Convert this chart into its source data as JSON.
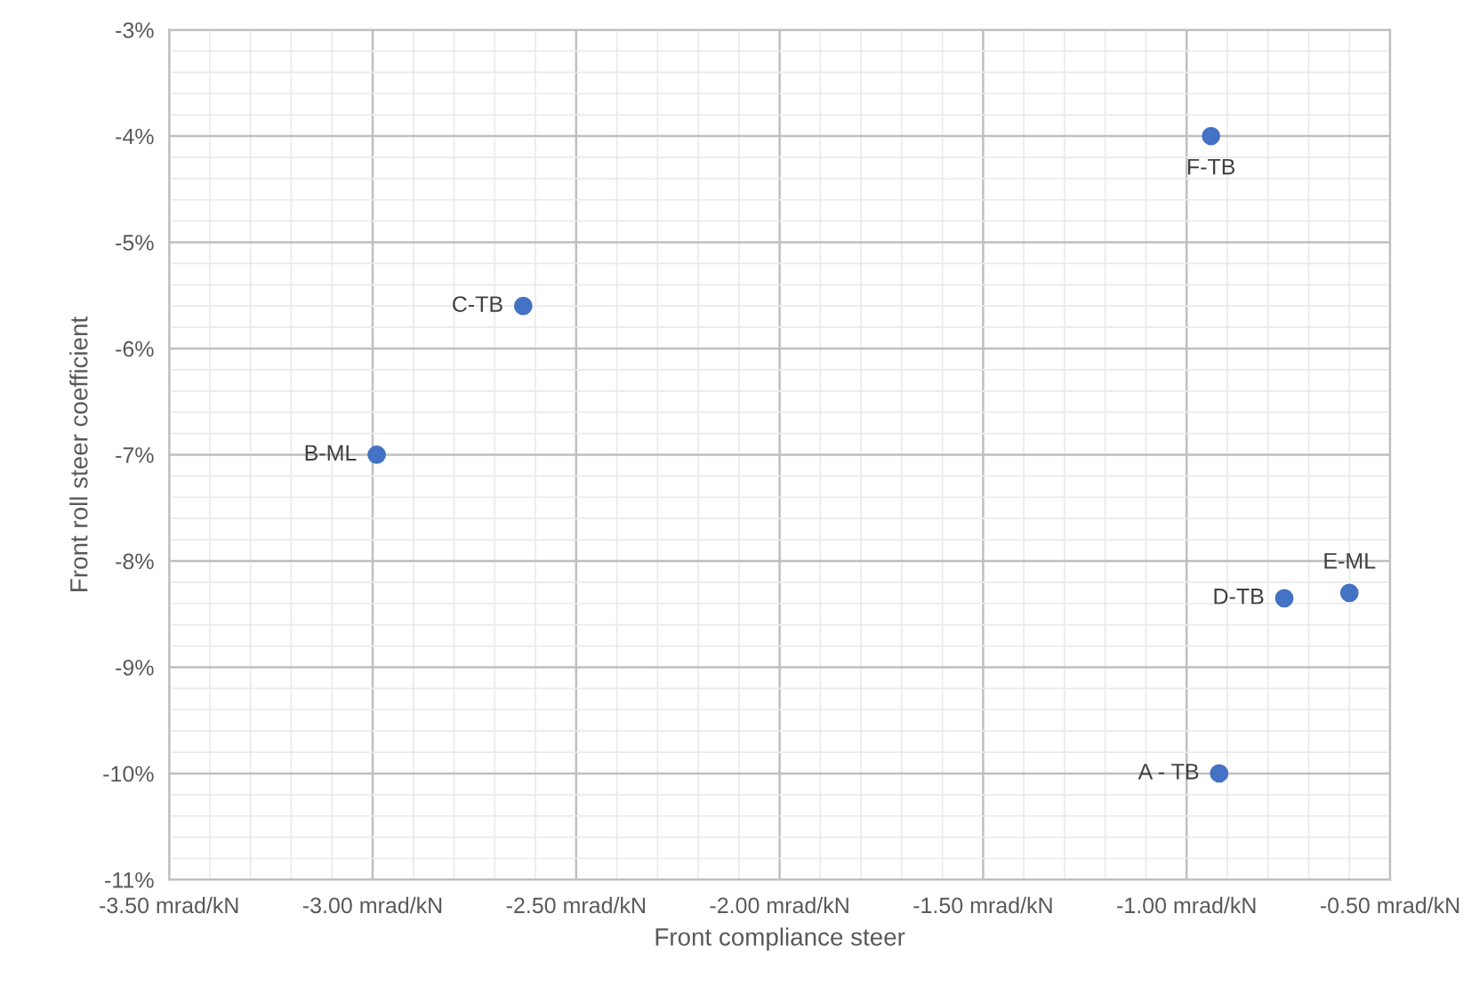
{
  "chart_data": {
    "type": "scatter",
    "xlabel": "Front compliance steer",
    "ylabel": "Front roll steer coefficient",
    "series": [
      {
        "color": "#4472c4",
        "x": [
          -0.92,
          -2.99,
          -2.63,
          -0.76,
          -0.6,
          -0.94
        ],
        "values": [
          -10.0,
          -7.0,
          -5.6,
          -8.35,
          -8.3,
          -4.0
        ]
      }
    ],
    "annotations": [
      {
        "text": "A - TB",
        "x": -0.92,
        "y": -10.0
      },
      {
        "text": "B-ML",
        "x": -2.99,
        "y": -7.0
      },
      {
        "text": "C-TB",
        "x": -2.63,
        "y": -5.6
      },
      {
        "text": "D-TB",
        "x": -0.76,
        "y": -8.35
      },
      {
        "text": "E-ML",
        "x": -0.6,
        "y": -8.3
      },
      {
        "text": "F-TB",
        "x": -0.94,
        "y": -4.0
      }
    ],
    "xlim": [
      -3.5,
      -0.5
    ],
    "xticks": [
      {
        "value": -3.5,
        "label": "-3.50 mrad/kN"
      },
      {
        "value": -3.0,
        "label": "-3.00 mrad/kN"
      },
      {
        "value": -2.5,
        "label": "-2.50 mrad/kN"
      },
      {
        "value": -2.0,
        "label": "-2.00 mrad/kN"
      },
      {
        "value": -1.5,
        "label": "-1.50 mrad/kN"
      },
      {
        "value": -1.0,
        "label": "-1.00 mrad/kN"
      },
      {
        "value": -0.5,
        "label": "-0.50 mrad/kN"
      }
    ],
    "ylim": [
      -11,
      -3
    ],
    "yticks": [
      {
        "value": -11,
        "label": "-11%"
      },
      {
        "value": -10,
        "label": "-10%"
      },
      {
        "value": -9,
        "label": "-9%"
      },
      {
        "value": -8,
        "label": "-8%"
      },
      {
        "value": -7,
        "label": "-7%"
      },
      {
        "value": -6,
        "label": "-6%"
      },
      {
        "value": -5,
        "label": "-5%"
      },
      {
        "value": -4,
        "label": "-4%"
      },
      {
        "value": -3,
        "label": "-3%"
      }
    ],
    "grid": true,
    "marker": "circle",
    "legend": false
  }
}
